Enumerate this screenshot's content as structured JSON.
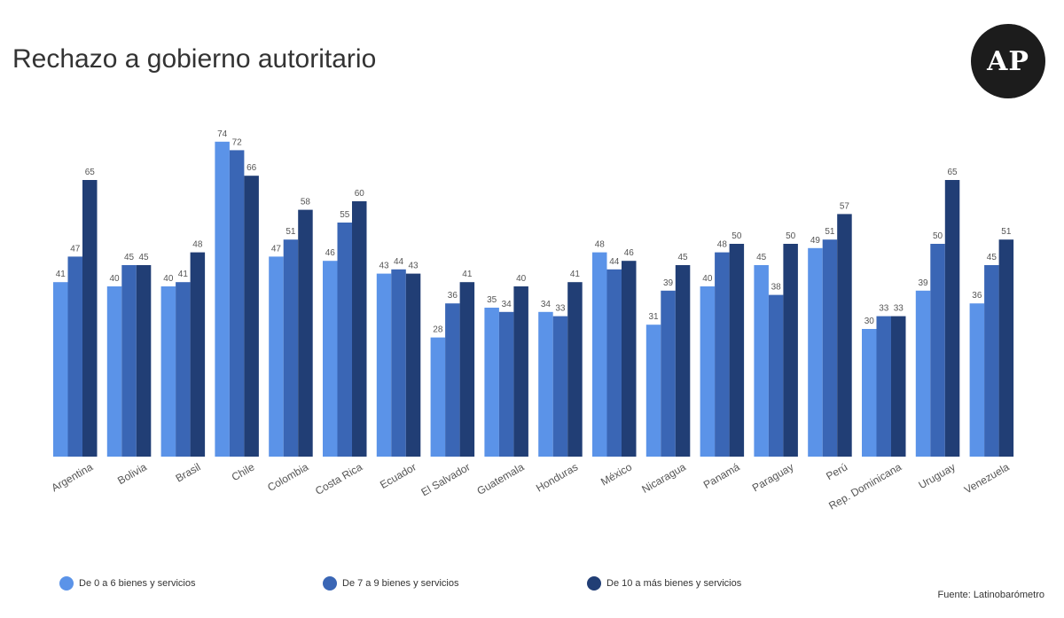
{
  "colors": [
    "#5b93e8",
    "#3a66b5",
    "#213e75"
  ],
  "logo_text": "AP",
  "source": "Fuente: Latinobarómetro",
  "chart_data": {
    "type": "bar",
    "title": "Rechazo a gobierno autoritario",
    "categories": [
      "Argentina",
      "Bolivia",
      "Brasil",
      "Chile",
      "Colombia",
      "Costa Rica",
      "Ecuador",
      "El Salvador",
      "Guatemala",
      "Honduras",
      "México",
      "Nicaragua",
      "Panamá",
      "Paraguay",
      "Perú",
      "Rep. Dominicana",
      "Uruguay",
      "Venezuela"
    ],
    "series": [
      {
        "name": "De 0 a 6 bienes y servicios",
        "values": [
          41,
          40,
          40,
          74,
          47,
          46,
          43,
          28,
          35,
          34,
          48,
          31,
          40,
          45,
          49,
          30,
          39,
          36
        ]
      },
      {
        "name": "De 7 a 9 bienes y servicios",
        "values": [
          47,
          45,
          41,
          72,
          51,
          55,
          44,
          36,
          34,
          33,
          44,
          39,
          48,
          38,
          51,
          33,
          50,
          45
        ]
      },
      {
        "name": "De 10 a más bienes y servicios",
        "values": [
          65,
          45,
          48,
          66,
          58,
          60,
          43,
          41,
          40,
          41,
          46,
          45,
          50,
          50,
          57,
          33,
          65,
          51
        ]
      }
    ],
    "ylim": [
      0,
      80
    ],
    "legend": "bottom"
  }
}
